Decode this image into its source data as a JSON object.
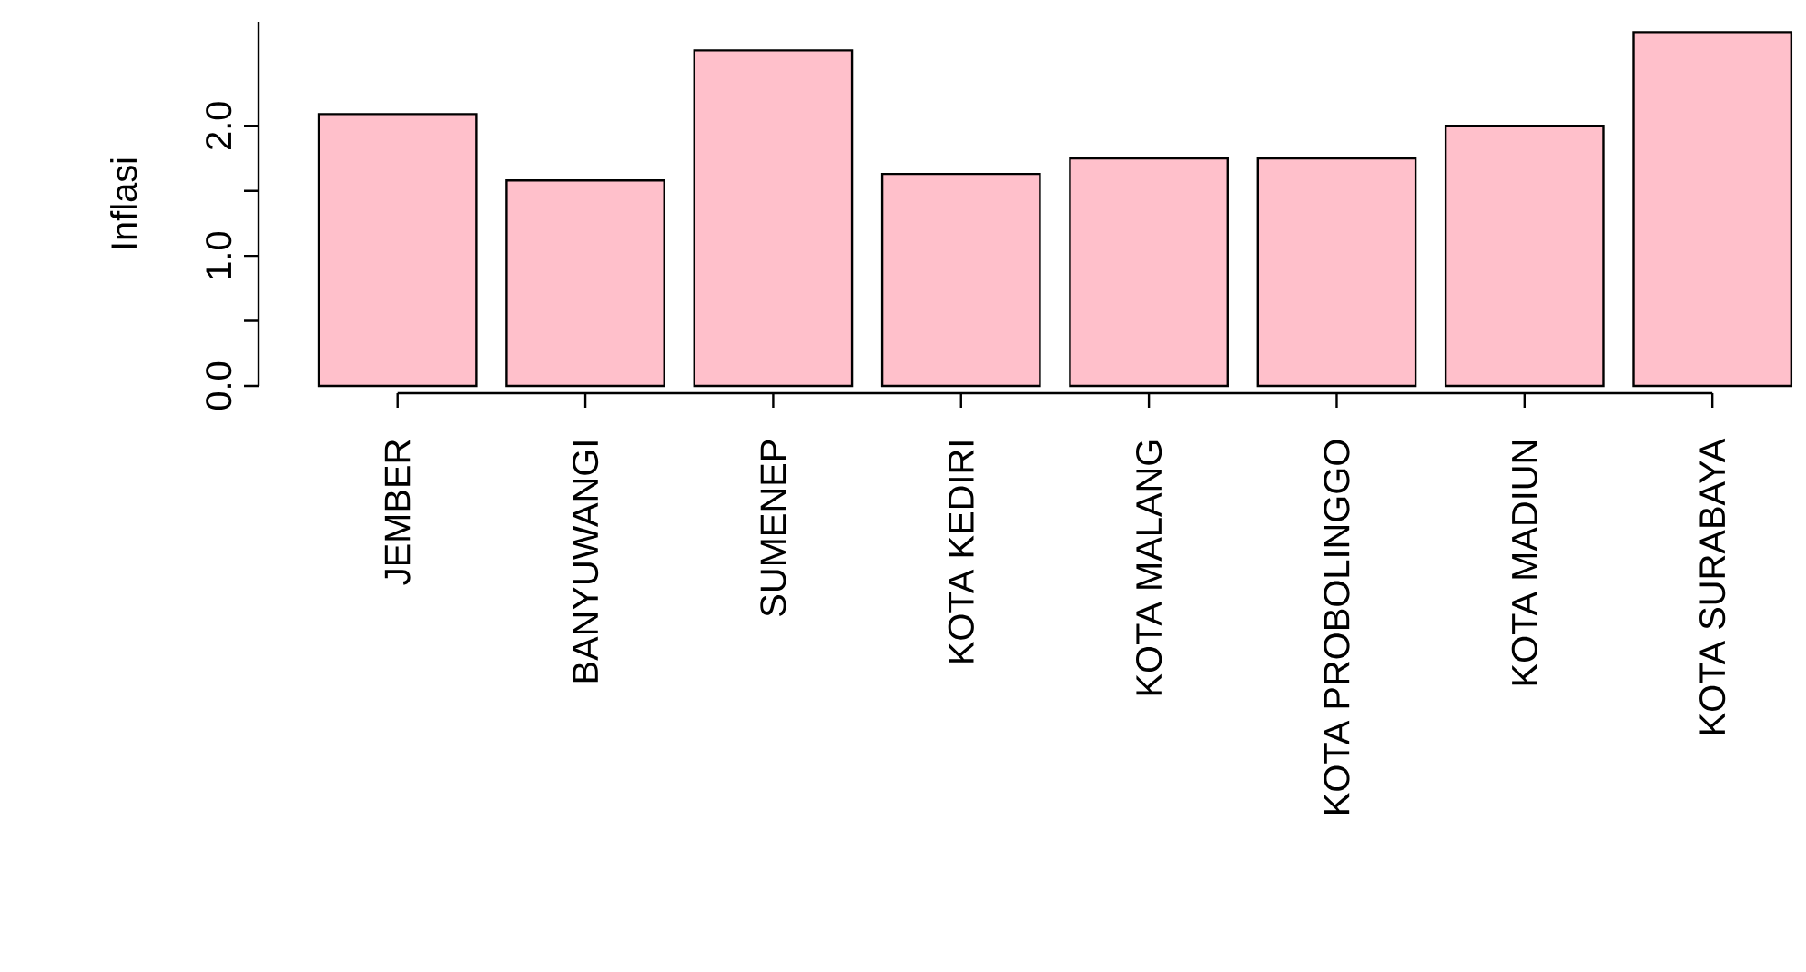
{
  "chart_data": {
    "type": "bar",
    "ylabel": "Inflasi",
    "categories": [
      "JEMBER",
      "BANYUWANGI",
      "SUMENEP",
      "KOTA KEDIRI",
      "KOTA MALANG",
      "KOTA PROBOLINGGO",
      "KOTA MADIUN",
      "KOTA SURABAYA"
    ],
    "values": [
      2.09,
      1.58,
      2.58,
      1.63,
      1.75,
      1.75,
      2.0,
      2.72
    ],
    "color": "#ffc0cb",
    "ylim": [
      0,
      2.8
    ],
    "yticks": [
      {
        "value": 0,
        "label": "0.0"
      },
      {
        "value": 1,
        "label": "1.0"
      },
      {
        "value": 2,
        "label": "2.0"
      }
    ]
  }
}
